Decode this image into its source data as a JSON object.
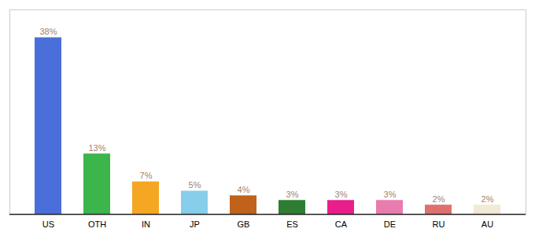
{
  "chart_data": {
    "type": "bar",
    "categories": [
      "US",
      "OTH",
      "IN",
      "JP",
      "GB",
      "ES",
      "CA",
      "DE",
      "RU",
      "AU"
    ],
    "values": [
      38,
      13,
      7,
      5,
      4,
      3,
      3,
      3,
      2,
      2
    ],
    "value_labels": [
      "38%",
      "13%",
      "7%",
      "5%",
      "4%",
      "3%",
      "3%",
      "3%",
      "2%",
      "2%"
    ],
    "colors": [
      "#4a6fdb",
      "#3cb54a",
      "#f5a623",
      "#87ceeb",
      "#c0621a",
      "#2e7d32",
      "#e91e8c",
      "#e87caf",
      "#e07070",
      "#f0ead6"
    ],
    "ylim": [
      0,
      44
    ],
    "data_labels": true,
    "tick_labels": "x",
    "grid": false
  }
}
